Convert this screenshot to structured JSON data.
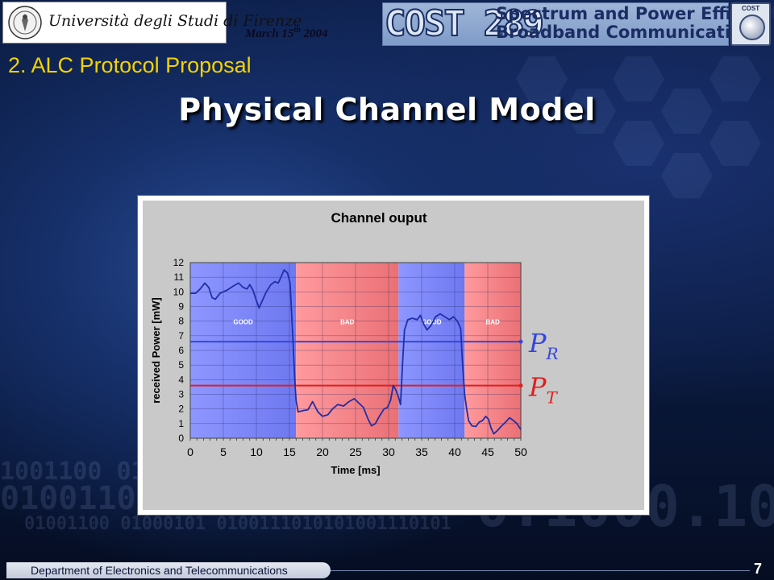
{
  "header": {
    "university_name": "Università degli Studi di Firenze",
    "date": "March 15",
    "date_suffix": "th",
    "date_year": "2004",
    "cost_label": "COST 289",
    "cost_subtitle_line1": "Spectrum and Power Efficient",
    "cost_subtitle_line2": "Broadband Communications",
    "cost_badge": "COST"
  },
  "section_title": "2. ALC Protocol Proposal",
  "slide_title": "Physical Channel Model",
  "footer": {
    "department": "Department of Electronics and Telecommunications",
    "page_number": "7"
  },
  "colors": {
    "good_region": "#6e78f0",
    "bad_region": "#ea7075",
    "curve": "#1f2fa8",
    "pr_line": "#3445e0",
    "pt_line": "#e01f1f",
    "section_title": "#f4d200"
  },
  "chart_data": {
    "type": "line",
    "title": "Channel ouput",
    "xlabel": "Time [ms]",
    "ylabel": "received Power [mW]",
    "xlim": [
      0,
      50
    ],
    "ylim": [
      0,
      12
    ],
    "xticks": [
      0,
      5,
      10,
      15,
      20,
      25,
      30,
      35,
      40,
      45,
      50
    ],
    "yticks": [
      0,
      1,
      2,
      3,
      4,
      5,
      6,
      7,
      8,
      9,
      10,
      11,
      12
    ],
    "grid": true,
    "regions": [
      {
        "label": "GOOD",
        "state": "good",
        "x_start": 0,
        "x_end": 16
      },
      {
        "label": "BAD",
        "state": "bad",
        "x_start": 16,
        "x_end": 31.5
      },
      {
        "label": "GOOD",
        "state": "good",
        "x_start": 31.5,
        "x_end": 41.5
      },
      {
        "label": "BAD",
        "state": "bad",
        "x_start": 41.5,
        "x_end": 50
      }
    ],
    "thresholds": [
      {
        "name": "P_R",
        "label": "P",
        "subscript": "R",
        "y": 6.6
      },
      {
        "name": "P_T",
        "label": "P",
        "subscript": "T",
        "y": 3.6
      }
    ],
    "series": [
      {
        "values": [
          [
            0,
            9.9
          ],
          [
            0.8,
            9.9
          ],
          [
            1.5,
            10.2
          ],
          [
            2.2,
            10.6
          ],
          [
            2.8,
            10.3
          ],
          [
            3.3,
            9.6
          ],
          [
            3.8,
            9.5
          ],
          [
            4.5,
            9.9
          ],
          [
            5.5,
            10.1
          ],
          [
            6.5,
            10.4
          ],
          [
            7.3,
            10.6
          ],
          [
            8,
            10.3
          ],
          [
            8.6,
            10.2
          ],
          [
            9,
            10.5
          ],
          [
            9.5,
            10.1
          ],
          [
            10,
            9.4
          ],
          [
            10.4,
            8.9
          ],
          [
            10.8,
            9.3
          ],
          [
            11.5,
            10.0
          ],
          [
            12.2,
            10.5
          ],
          [
            12.8,
            10.7
          ],
          [
            13.3,
            10.6
          ],
          [
            13.8,
            11.1
          ],
          [
            14.2,
            11.5
          ],
          [
            14.7,
            11.3
          ],
          [
            15.1,
            10.6
          ],
          [
            15.5,
            7.0
          ],
          [
            15.8,
            4.0
          ],
          [
            16,
            2.6
          ],
          [
            16.3,
            1.8
          ],
          [
            17.2,
            1.9
          ],
          [
            17.8,
            1.95
          ],
          [
            18.5,
            2.5
          ],
          [
            19.3,
            1.8
          ],
          [
            20,
            1.5
          ],
          [
            20.8,
            1.6
          ],
          [
            21.5,
            2.0
          ],
          [
            22.3,
            2.3
          ],
          [
            23.2,
            2.2
          ],
          [
            24,
            2.5
          ],
          [
            24.8,
            2.7
          ],
          [
            25.5,
            2.4
          ],
          [
            26.2,
            2.1
          ],
          [
            26.9,
            1.3
          ],
          [
            27.4,
            0.85
          ],
          [
            28,
            1.0
          ],
          [
            28.6,
            1.5
          ],
          [
            29.3,
            2.0
          ],
          [
            29.8,
            2.1
          ],
          [
            30.3,
            2.6
          ],
          [
            30.7,
            3.6
          ],
          [
            31.1,
            3.3
          ],
          [
            31.5,
            2.8
          ],
          [
            31.8,
            2.3
          ],
          [
            32.1,
            5.0
          ],
          [
            32.4,
            7.4
          ],
          [
            32.9,
            8.1
          ],
          [
            33.6,
            8.2
          ],
          [
            34.3,
            8.1
          ],
          [
            34.8,
            8.4
          ],
          [
            35.3,
            7.8
          ],
          [
            35.8,
            7.4
          ],
          [
            36.4,
            7.7
          ],
          [
            37.1,
            8.3
          ],
          [
            37.8,
            8.5
          ],
          [
            38.5,
            8.3
          ],
          [
            39.2,
            8.1
          ],
          [
            39.8,
            8.3
          ],
          [
            40.4,
            8.0
          ],
          [
            40.9,
            7.5
          ],
          [
            41.2,
            5.0
          ],
          [
            41.5,
            3.0
          ],
          [
            41.8,
            2.0
          ],
          [
            42.1,
            1.2
          ],
          [
            42.6,
            0.85
          ],
          [
            43.2,
            0.8
          ],
          [
            43.7,
            1.1
          ],
          [
            44.2,
            1.2
          ],
          [
            44.7,
            1.5
          ],
          [
            45.1,
            1.3
          ],
          [
            45.5,
            0.7
          ],
          [
            45.9,
            0.3
          ],
          [
            46.4,
            0.5
          ],
          [
            47,
            0.8
          ],
          [
            47.7,
            1.1
          ],
          [
            48.3,
            1.4
          ],
          [
            48.9,
            1.2
          ],
          [
            49.4,
            1.0
          ],
          [
            50,
            0.6
          ]
        ]
      }
    ]
  }
}
